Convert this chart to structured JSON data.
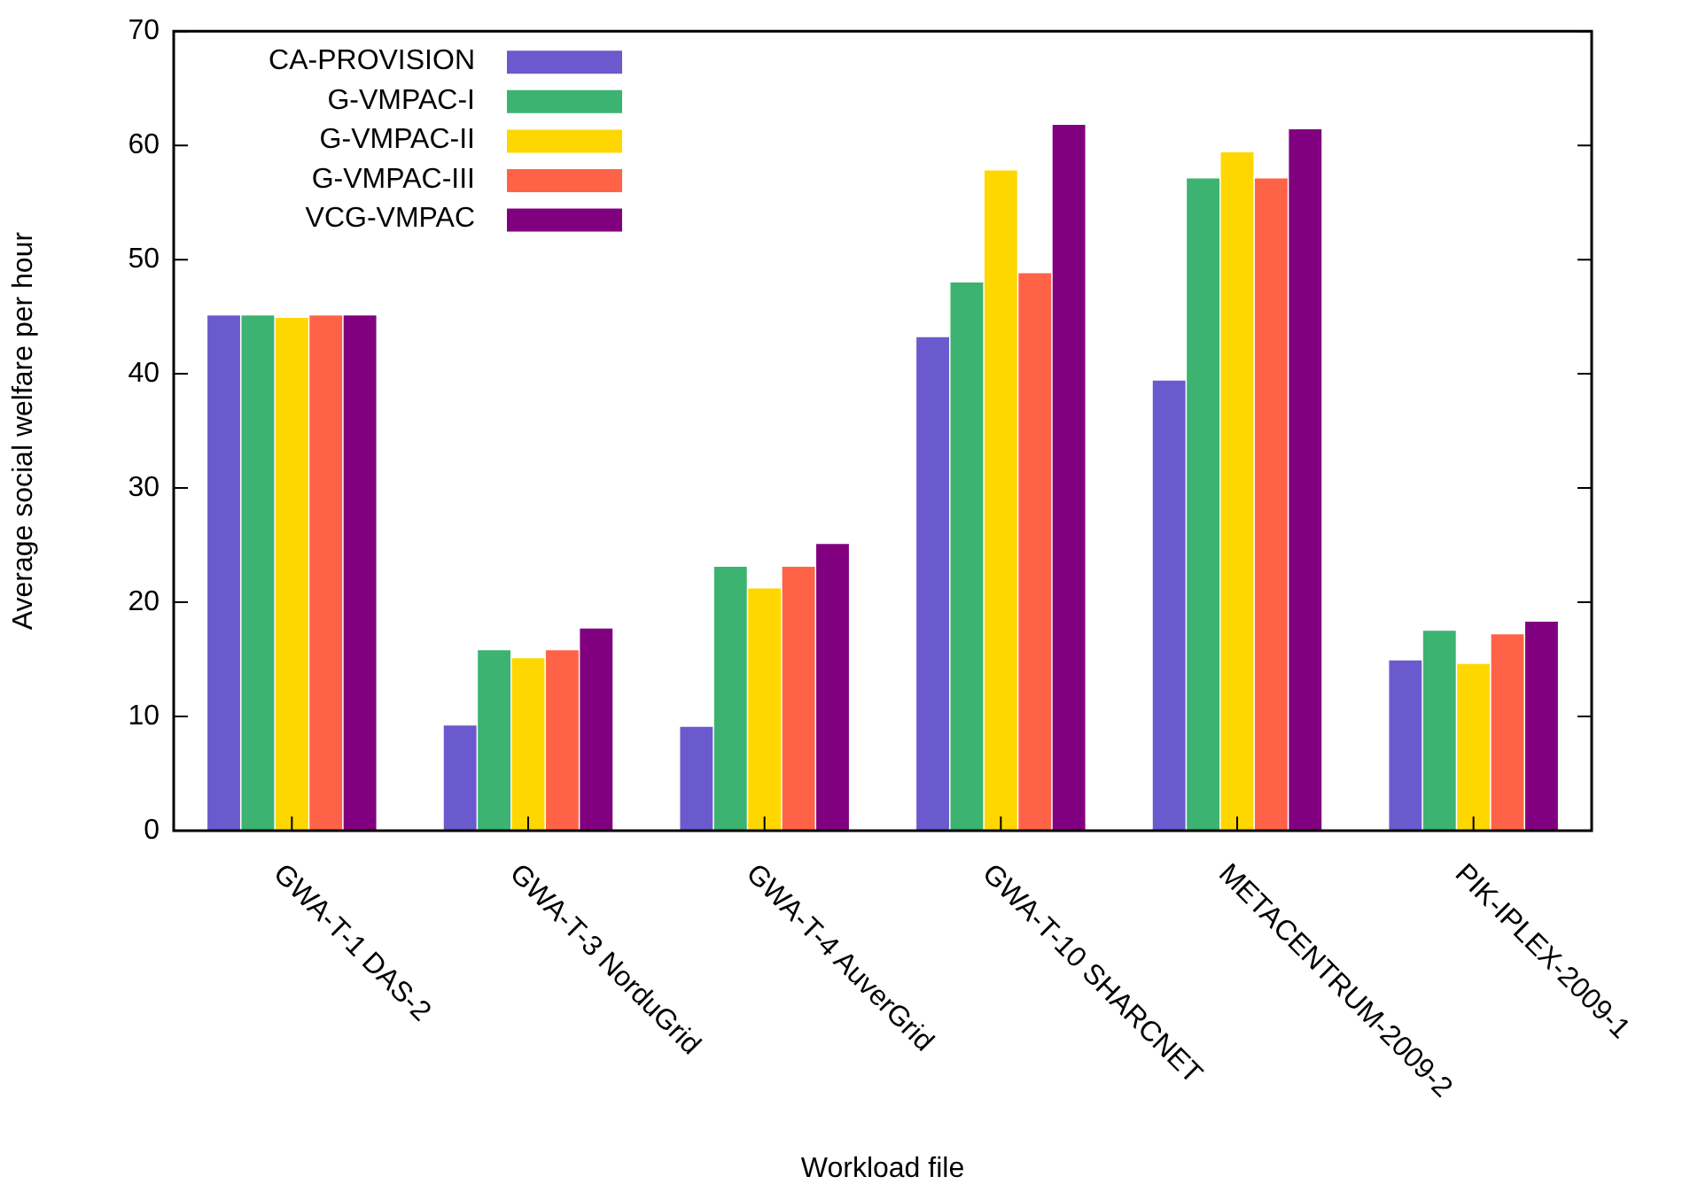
{
  "chart_data": {
    "type": "bar",
    "xlabel": "Workload file",
    "ylabel": "Average social welfare per hour",
    "categories": [
      "GWA-T-1 DAS-2",
      "GWA-T-3 NorduGrid",
      "GWA-T-4 AuverGrid",
      "GWA-T-10 SHARCNET",
      "METACENTRUM-2009-2",
      "PIK-IPLEX-2009-1"
    ],
    "series": [
      {
        "name": "CA-PROVISION",
        "color": "#6a5acd",
        "values": [
          45.1,
          9.2,
          9.1,
          43.2,
          39.4,
          14.9
        ]
      },
      {
        "name": "G-VMPAC-I",
        "color": "#3cb371",
        "values": [
          45.1,
          15.8,
          23.1,
          48.0,
          57.1,
          17.5
        ]
      },
      {
        "name": "G-VMPAC-II",
        "color": "#ffd700",
        "values": [
          44.9,
          15.1,
          21.2,
          57.8,
          59.4,
          14.6
        ]
      },
      {
        "name": "G-VMPAC-III",
        "color": "#ff6347",
        "values": [
          45.1,
          15.8,
          23.1,
          48.8,
          57.1,
          17.2
        ]
      },
      {
        "name": "VCG-VMPAC",
        "color": "#800080",
        "values": [
          45.1,
          17.7,
          25.1,
          61.8,
          61.4,
          18.3
        ]
      }
    ],
    "ylim": [
      0,
      70
    ],
    "yticks": [
      0,
      10,
      20,
      30,
      40,
      50,
      60,
      70
    ],
    "grid": false,
    "legend": "top left"
  }
}
